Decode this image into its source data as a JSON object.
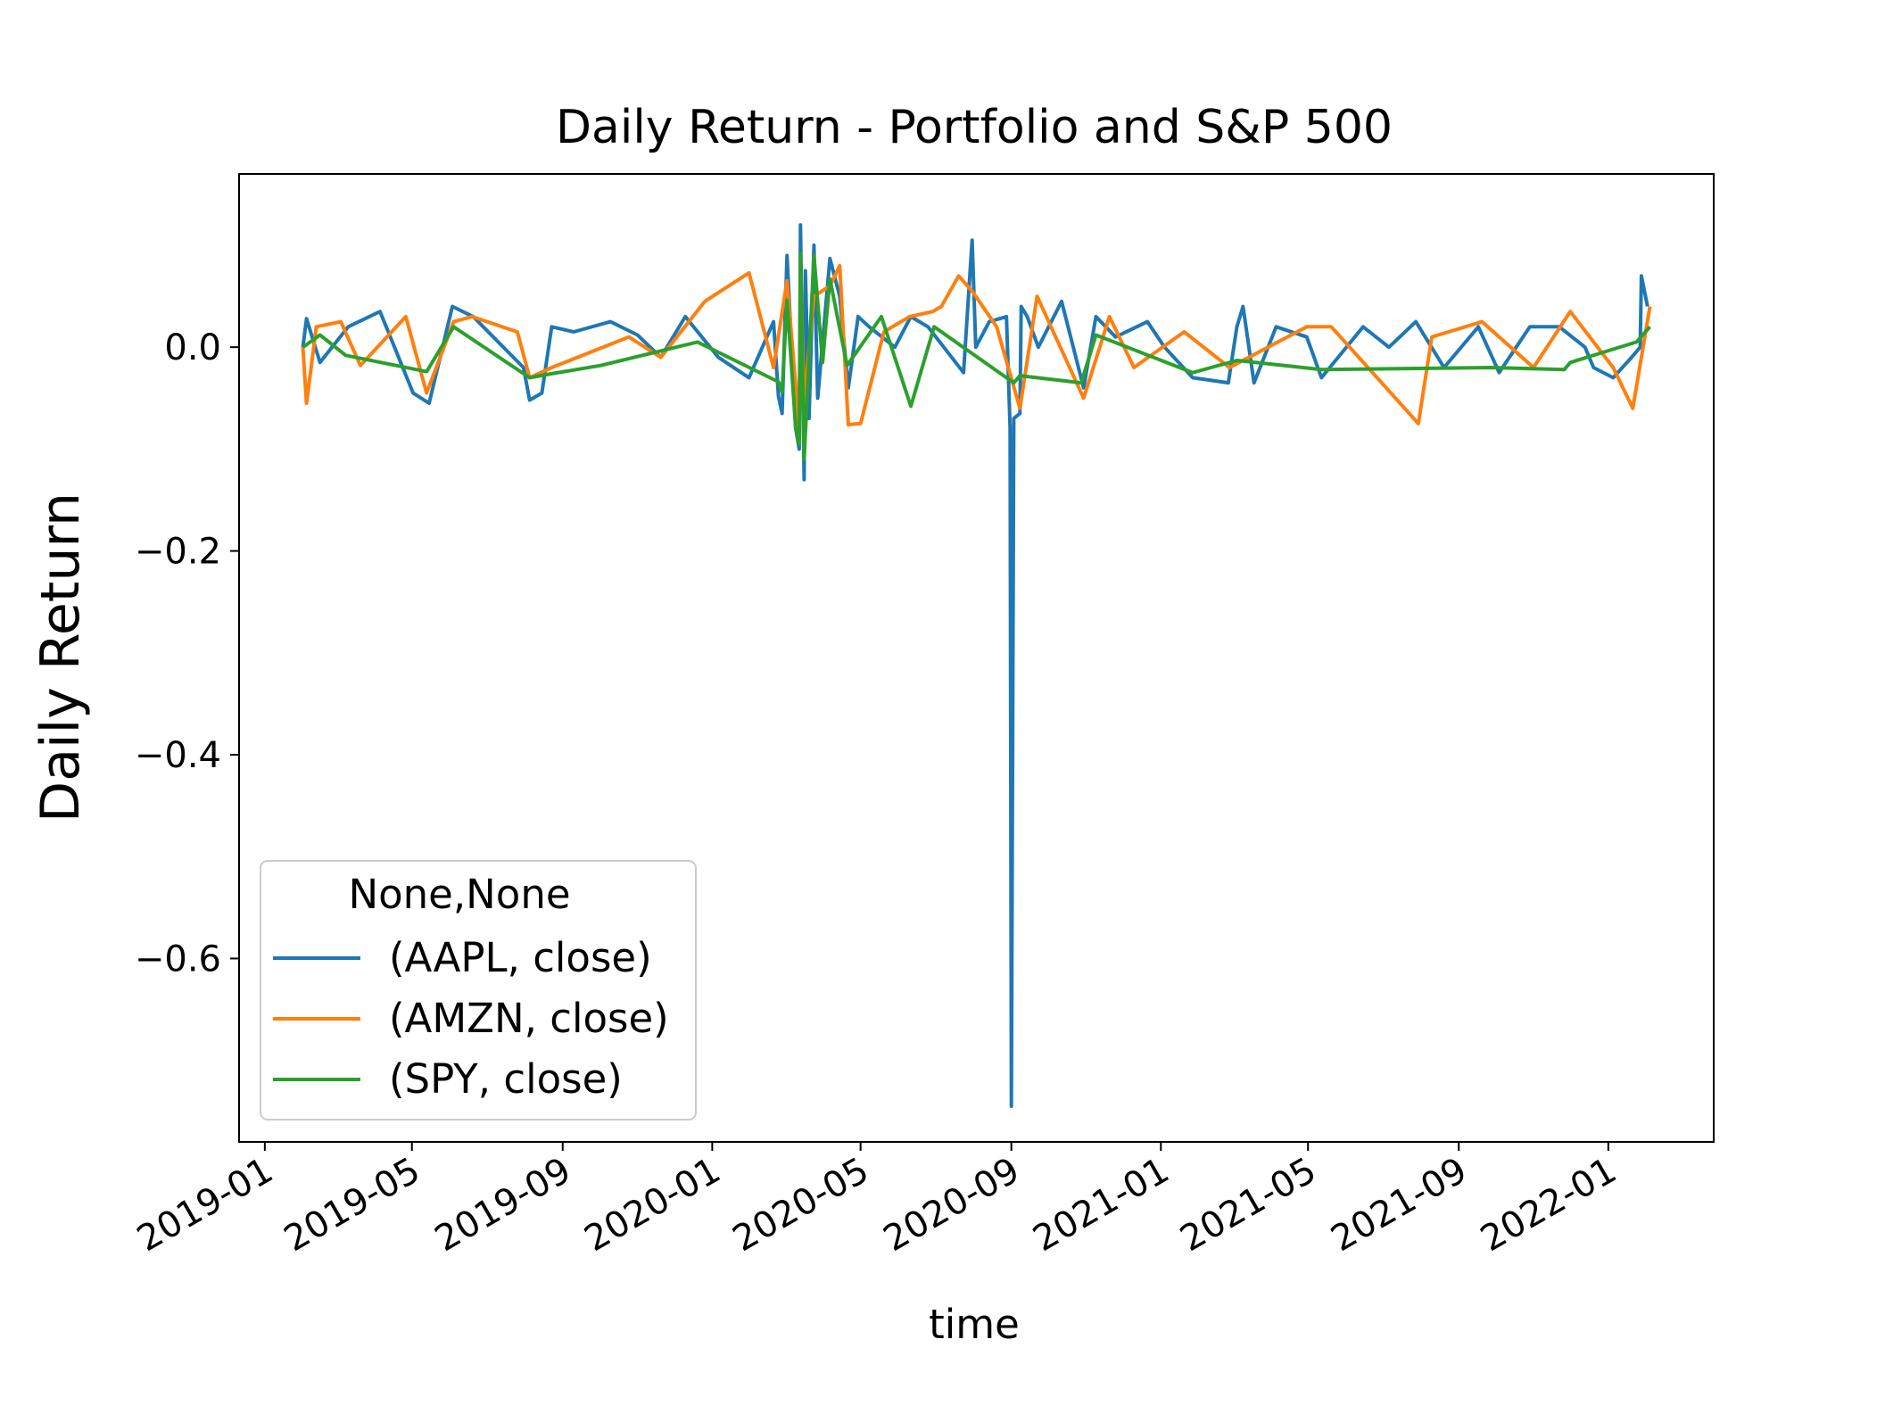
{
  "chart_data": {
    "type": "line",
    "title": "Daily Return - Portfolio and S&P 500",
    "xlabel": "time",
    "ylabel": "Daily Return",
    "xlim": [
      "2018-12-11",
      "2022-03-28"
    ],
    "ylim": [
      -0.78,
      0.17
    ],
    "yticks": [
      0.0,
      -0.2,
      -0.4,
      -0.6
    ],
    "ytick_labels": [
      "0.0",
      "−0.2",
      "−0.4",
      "−0.6"
    ],
    "xticks": [
      "2019-01-01",
      "2019-05-01",
      "2019-09-01",
      "2020-01-01",
      "2020-05-01",
      "2020-09-01",
      "2021-01-01",
      "2021-05-01",
      "2021-09-01",
      "2022-01-01"
    ],
    "xtick_labels": [
      "2019-01",
      "2019-05",
      "2019-09",
      "2020-01",
      "2020-05",
      "2020-09",
      "2021-01",
      "2021-05",
      "2021-09",
      "2022-01"
    ],
    "grid": false,
    "legend": {
      "title": "None,None",
      "placement": "lower-left"
    },
    "series": [
      {
        "name": "(AAPL, close)",
        "color": "#1f77b4",
        "x": [
          "2019-02-01",
          "2019-02-04",
          "2019-02-15",
          "2019-03-10",
          "2019-04-05",
          "2019-05-02",
          "2019-05-15",
          "2019-06-03",
          "2019-06-20",
          "2019-07-31",
          "2019-08-05",
          "2019-08-15",
          "2019-08-23",
          "2019-09-10",
          "2019-10-10",
          "2019-11-01",
          "2019-11-20",
          "2019-12-10",
          "2020-01-06",
          "2020-01-31",
          "2020-02-20",
          "2020-02-24",
          "2020-02-27",
          "2020-03-02",
          "2020-03-09",
          "2020-03-12",
          "2020-03-13",
          "2020-03-16",
          "2020-03-17",
          "2020-03-20",
          "2020-03-24",
          "2020-03-27",
          "2020-04-06",
          "2020-04-14",
          "2020-04-21",
          "2020-04-29",
          "2020-05-08",
          "2020-05-29",
          "2020-06-11",
          "2020-06-25",
          "2020-07-24",
          "2020-07-31",
          "2020-08-03",
          "2020-08-14",
          "2020-08-28",
          "2020-08-31",
          "2020-09-01",
          "2020-09-03",
          "2020-09-08",
          "2020-09-09",
          "2020-09-14",
          "2020-09-23",
          "2020-10-12",
          "2020-10-30",
          "2020-11-09",
          "2020-11-25",
          "2020-12-21",
          "2021-01-04",
          "2021-01-27",
          "2021-02-25",
          "2021-03-04",
          "2021-03-09",
          "2021-03-18",
          "2021-04-05",
          "2021-04-30",
          "2021-05-12",
          "2021-06-15",
          "2021-07-06",
          "2021-07-28",
          "2021-08-20",
          "2021-09-17",
          "2021-10-04",
          "2021-10-29",
          "2021-11-22",
          "2021-12-13",
          "2021-12-20",
          "2022-01-05",
          "2022-01-20",
          "2022-01-27",
          "2022-01-28",
          "2022-02-02"
        ],
        "y": [
          0.0,
          0.028,
          -0.015,
          0.02,
          0.035,
          -0.045,
          -0.055,
          0.04,
          0.03,
          -0.02,
          -0.052,
          -0.045,
          0.02,
          0.015,
          0.025,
          0.012,
          -0.01,
          0.03,
          -0.01,
          -0.03,
          0.025,
          -0.048,
          -0.065,
          0.09,
          -0.079,
          -0.1,
          0.12,
          -0.13,
          0.075,
          -0.07,
          0.1,
          -0.05,
          0.087,
          0.05,
          -0.04,
          0.03,
          0.02,
          0.0,
          0.03,
          0.02,
          -0.025,
          0.105,
          0.0,
          0.025,
          0.03,
          -0.08,
          -0.745,
          -0.07,
          -0.065,
          0.04,
          0.03,
          0.0,
          0.045,
          -0.04,
          0.03,
          0.01,
          0.025,
          0.0,
          -0.03,
          -0.035,
          0.02,
          0.04,
          -0.035,
          0.02,
          0.01,
          -0.03,
          0.02,
          0.0,
          0.025,
          -0.02,
          0.02,
          -0.025,
          0.02,
          0.02,
          0.0,
          -0.02,
          -0.03,
          -0.01,
          0.0,
          0.07,
          0.04
        ]
      },
      {
        "name": "(AMZN, close)",
        "color": "#ff7f0e",
        "x": [
          "2019-02-01",
          "2019-02-04",
          "2019-02-12",
          "2019-03-04",
          "2019-03-20",
          "2019-04-26",
          "2019-05-13",
          "2019-06-04",
          "2019-06-19",
          "2019-07-26",
          "2019-08-05",
          "2019-08-23",
          "2019-10-25",
          "2019-11-20",
          "2019-12-26",
          "2020-01-31",
          "2020-02-20",
          "2020-03-02",
          "2020-03-12",
          "2020-03-13",
          "2020-03-16",
          "2020-03-24",
          "2020-04-06",
          "2020-04-14",
          "2020-04-21",
          "2020-05-01",
          "2020-05-20",
          "2020-06-10",
          "2020-06-29",
          "2020-07-06",
          "2020-07-20",
          "2020-07-31",
          "2020-08-20",
          "2020-09-08",
          "2020-09-22",
          "2020-10-30",
          "2020-11-20",
          "2020-12-10",
          "2021-01-20",
          "2021-02-26",
          "2021-04-30",
          "2021-05-20",
          "2021-07-30",
          "2021-08-10",
          "2021-09-20",
          "2021-11-01",
          "2021-12-01",
          "2022-01-05",
          "2022-01-21",
          "2022-02-04"
        ],
        "y": [
          0.0,
          -0.055,
          0.02,
          0.025,
          -0.018,
          0.03,
          -0.045,
          0.025,
          0.03,
          0.015,
          -0.03,
          -0.02,
          0.01,
          -0.01,
          0.045,
          0.073,
          -0.02,
          0.065,
          -0.08,
          0.08,
          -0.055,
          0.05,
          0.06,
          0.08,
          -0.076,
          -0.075,
          0.015,
          0.03,
          0.035,
          0.04,
          0.07,
          0.055,
          0.02,
          -0.06,
          0.05,
          -0.05,
          0.03,
          -0.02,
          0.015,
          -0.02,
          0.02,
          0.02,
          -0.075,
          0.01,
          0.025,
          -0.02,
          0.035,
          -0.02,
          -0.06,
          0.04
        ]
      },
      {
        "name": "(SPY, close)",
        "color": "#2ca02c",
        "x": [
          "2019-02-01",
          "2019-02-15",
          "2019-03-08",
          "2019-05-13",
          "2019-06-04",
          "2019-08-05",
          "2019-08-23",
          "2019-10-02",
          "2019-12-20",
          "2020-02-24",
          "2020-02-27",
          "2020-03-02",
          "2020-03-09",
          "2020-03-12",
          "2020-03-13",
          "2020-03-16",
          "2020-03-24",
          "2020-03-31",
          "2020-04-06",
          "2020-04-20",
          "2020-05-18",
          "2020-06-11",
          "2020-06-30",
          "2020-09-03",
          "2020-09-08",
          "2020-10-28",
          "2020-11-09",
          "2021-01-27",
          "2021-03-04",
          "2021-05-12",
          "2021-09-28",
          "2021-11-26",
          "2021-12-01",
          "2022-01-24",
          "2022-02-04"
        ],
        "y": [
          0.0,
          0.012,
          -0.008,
          -0.024,
          0.02,
          -0.03,
          -0.026,
          -0.018,
          0.005,
          -0.034,
          -0.044,
          0.046,
          -0.078,
          -0.095,
          0.092,
          -0.11,
          0.09,
          -0.015,
          0.067,
          -0.018,
          0.03,
          -0.058,
          0.02,
          -0.035,
          -0.028,
          -0.035,
          0.012,
          -0.025,
          -0.013,
          -0.022,
          -0.02,
          -0.022,
          -0.015,
          0.005,
          0.02
        ]
      }
    ]
  }
}
